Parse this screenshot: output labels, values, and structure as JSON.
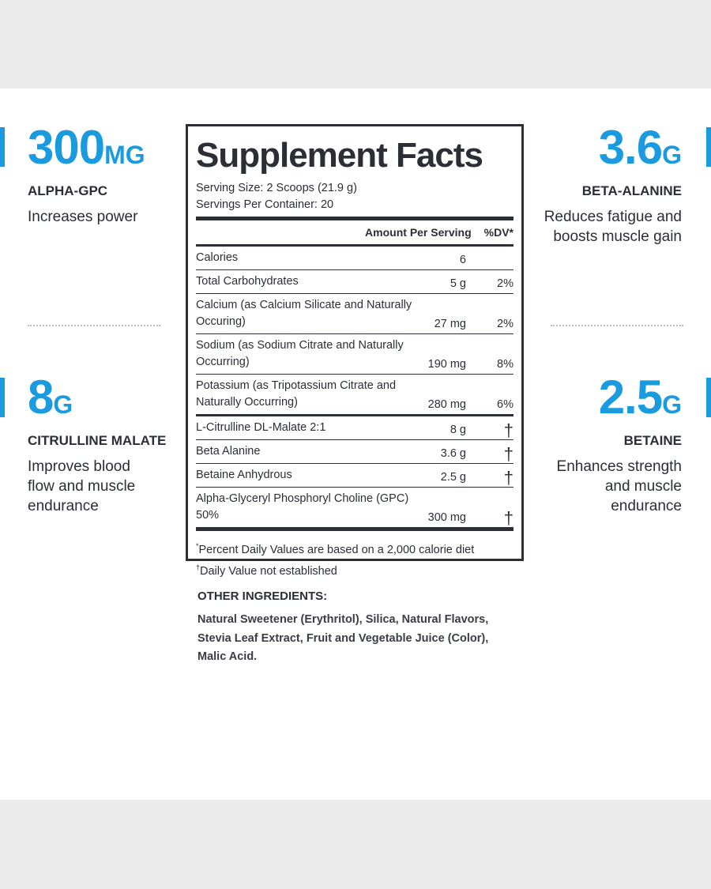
{
  "colors": {
    "accent": "#1a9be0",
    "text": "#2b2e35",
    "background": "#ebebeb"
  },
  "stats": {
    "alpha": {
      "value": "300",
      "unit": "MG",
      "name": "ALPHA-GPC",
      "desc": "Increases power"
    },
    "citrulline": {
      "value": "8",
      "unit": "G",
      "name": "CITRULLINE MALATE",
      "desc": "Improves blood flow and muscle endurance"
    },
    "beta": {
      "value": "3.6",
      "unit": "G",
      "name": "BETA-ALANINE",
      "desc": "Reduces fatigue and boosts muscle gain"
    },
    "betaine": {
      "value": "2.5",
      "unit": "G",
      "name": "BETAINE",
      "desc": "Enhances strength and muscle endurance"
    }
  },
  "facts": {
    "title": "Supplement Facts",
    "serving_size": "Serving Size: 2 Scoops (21.9 g)",
    "servings_per": "Servings Per Container: 20",
    "col_amount": "Amount Per Serving",
    "col_dv": "%DV*",
    "rows": [
      {
        "name": "Calories",
        "amount": "6",
        "dv": ""
      },
      {
        "name": "Total Carbohydrates",
        "amount": "5 g",
        "dv": "2%"
      },
      {
        "name": "Calcium (as Calcium Silicate and Naturally Occuring)",
        "amount": "27 mg",
        "dv": "2%"
      },
      {
        "name": "Sodium (as Sodium Citrate and Naturally Occurring)",
        "amount": "190 mg",
        "dv": "8%"
      },
      {
        "name": "Potassium (as Tripotassium Citrate and Naturally Occurring)",
        "amount": "280 mg",
        "dv": "6%"
      },
      {
        "name": "L-Citrulline DL-Malate 2:1",
        "amount": "8 g",
        "dv": "†"
      },
      {
        "name": "Beta Alanine",
        "amount": "3.6 g",
        "dv": "†"
      },
      {
        "name": "Betaine Anhydrous",
        "amount": "2.5 g",
        "dv": "†"
      },
      {
        "name": "Alpha-Glyceryl Phosphoryl Choline (GPC) 50%",
        "amount": "300 mg",
        "dv": "†"
      }
    ],
    "footnote1_mark": "*",
    "footnote1": "Percent Daily Values are based on a 2,000 calorie diet",
    "footnote2_mark": "†",
    "footnote2": "Daily Value not established"
  },
  "other": {
    "heading": "OTHER INGREDIENTS:",
    "text": "Natural Sweetener (Erythritol), Silica, Natural Flavors, Stevia Leaf Extract, Fruit and Vegetable Juice (Color), Malic Acid."
  }
}
